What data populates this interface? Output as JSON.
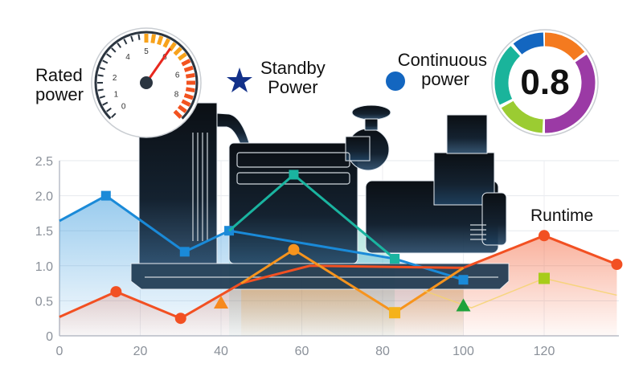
{
  "labels": {
    "rated_power": [
      "Rated",
      "power"
    ],
    "standby_power": [
      "Standby",
      "Power"
    ],
    "continuous_power": [
      "Continuous",
      "power"
    ],
    "runtime": "Runtime",
    "power_factor": "0.8"
  },
  "gauge": {
    "tick_labels": [
      "0",
      "1",
      "2",
      "4",
      "5",
      "6",
      "6",
      "8"
    ],
    "colors": {
      "ring": "#2b3540",
      "warning": "#f7a21b",
      "danger": "#f2521f",
      "needle": "#e8281e"
    }
  },
  "donut": {
    "segments": [
      {
        "color": "#f47a1f",
        "start": 0,
        "end": 52
      },
      {
        "color": "#9b3aa5",
        "start": 56,
        "end": 180
      },
      {
        "color": "#9bcc32",
        "start": 183,
        "end": 240
      },
      {
        "color": "#1ab49b",
        "start": 244,
        "end": 317
      },
      {
        "color": "#1366c0",
        "start": 321,
        "end": 358
      }
    ]
  },
  "icons": {
    "standby": "star-icon",
    "continuous": "circle-dot-icon",
    "machine": "generator-icon"
  },
  "chart_data": {
    "type": "line",
    "xlim": [
      0,
      140
    ],
    "ylim": [
      0,
      2.5
    ],
    "x_ticks": [
      "0",
      "20",
      "40",
      "60",
      "80",
      "100",
      "120"
    ],
    "y_ticks": [
      "0",
      "0.5",
      "1.0",
      "1.5",
      "2.0",
      "2.5"
    ],
    "grid": true,
    "series": [
      {
        "color": "#1a8ad8",
        "marker": "square",
        "fill": true,
        "points": [
          [
            0,
            1.64
          ],
          [
            11.5,
            2.0
          ],
          [
            31,
            1.2
          ],
          [
            42,
            1.5
          ],
          [
            83,
            1.1
          ],
          [
            100,
            0.8
          ]
        ]
      },
      {
        "color": "#1ab4a0",
        "marker": "square",
        "fill": true,
        "points": [
          [
            42,
            1.5
          ],
          [
            58,
            2.3
          ],
          [
            83,
            1.1
          ]
        ]
      },
      {
        "color": "#f25022",
        "marker": "circle",
        "fill": true,
        "points": [
          [
            0,
            0.27
          ],
          [
            14,
            0.63
          ],
          [
            30,
            0.25
          ],
          [
            45,
            0.75
          ],
          [
            62,
            1.0
          ],
          [
            100,
            0.97
          ],
          [
            120,
            1.43
          ],
          [
            138,
            1.02
          ]
        ]
      },
      {
        "color": "#f7941d",
        "marker": "circle",
        "fill": true,
        "points": [
          [
            45,
            0.75
          ],
          [
            58,
            1.23
          ],
          [
            83,
            0.33
          ],
          [
            100,
            0.97
          ]
        ]
      },
      {
        "color": "#f5d36a",
        "marker": "square",
        "fill": false,
        "points": [
          [
            90,
            0.65
          ],
          [
            102,
            0.4
          ],
          [
            120,
            0.82
          ],
          [
            138,
            0.58
          ]
        ]
      }
    ],
    "extra_markers": [
      {
        "shape": "triangle",
        "color": "#f7891f",
        "x": 40,
        "y": 0.47
      },
      {
        "shape": "triangle",
        "color": "#1ea23a",
        "x": 100,
        "y": 0.43
      },
      {
        "shape": "square",
        "color": "#a8cc1a",
        "x": 120,
        "y": 0.82
      },
      {
        "shape": "circle",
        "color": "#f7941d",
        "x": 58,
        "y": 1.23
      },
      {
        "shape": "square",
        "color": "#f5b21a",
        "x": 83,
        "y": 0.33
      }
    ]
  }
}
